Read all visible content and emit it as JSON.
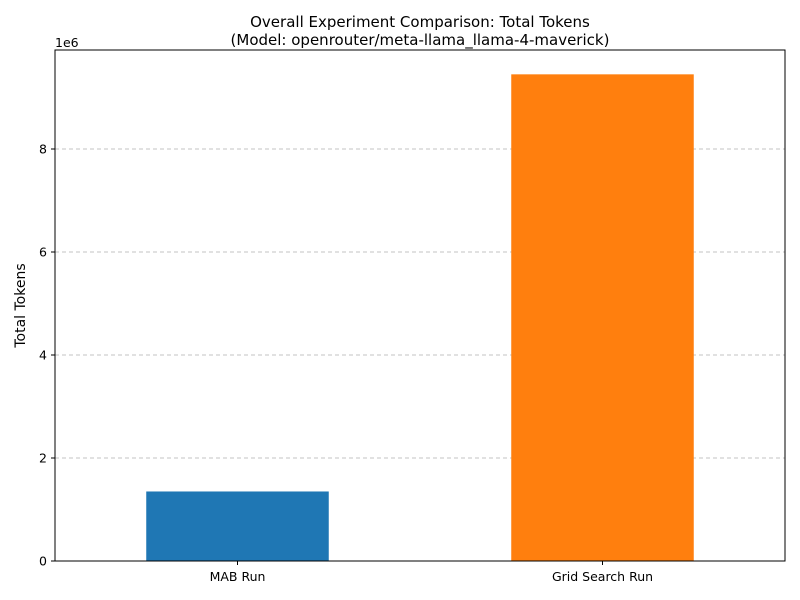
{
  "chart_data": {
    "type": "bar",
    "title_line1": "Overall Experiment Comparison: Total Tokens",
    "title_line2": "(Model: openrouter/meta-llama_llama-4-maverick)",
    "xlabel": "",
    "ylabel": "Total Tokens",
    "offset_label": "1e6",
    "categories": [
      "MAB Run",
      "Grid Search Run"
    ],
    "values": [
      1350000,
      9450000
    ],
    "colors": [
      "#1f77b4",
      "#ff7f0e"
    ],
    "ylim": [
      0,
      9922500
    ],
    "yticks": [
      0,
      2000000,
      4000000,
      6000000,
      8000000
    ],
    "ytick_labels": [
      "0",
      "2",
      "4",
      "6",
      "8"
    ],
    "grid": "y-dashed"
  }
}
